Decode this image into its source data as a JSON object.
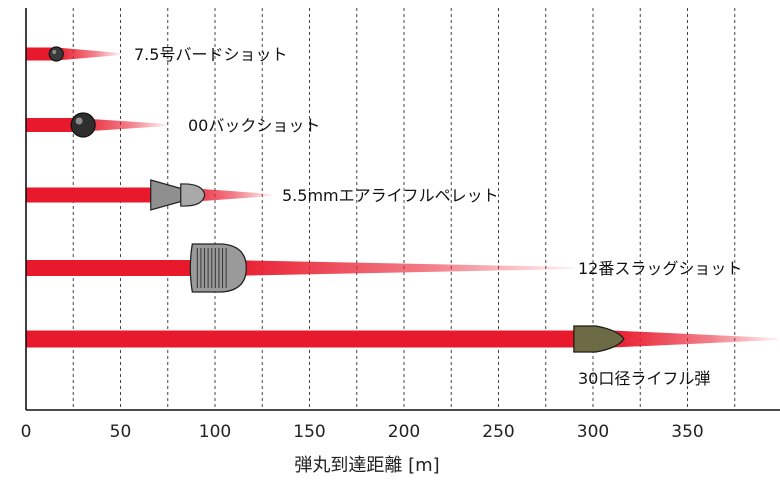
{
  "chart_data": {
    "type": "bar",
    "orientation": "horizontal",
    "xlabel": "弾丸到達距離 [m]",
    "xlim": [
      0,
      398
    ],
    "x_ticks": [
      0,
      50,
      100,
      150,
      200,
      250,
      300,
      350
    ],
    "grid": "vertical dashed",
    "categories": [
      "7.5号バードショット",
      "00バックショット",
      "5.5mmエアライフルペレット",
      "12番スラッグショット",
      "30口径ライフル弾"
    ],
    "values": [
      50,
      75,
      130,
      290,
      398
    ],
    "projectile_icon": [
      "small-shot-pellet-icon",
      "buckshot-ball-icon",
      "diabolo-pellet-icon",
      "slug-icon",
      "rifle-bullet-icon"
    ],
    "colors": {
      "trail": "#e8192c",
      "grid": "#444444",
      "axis": "#111111"
    }
  }
}
